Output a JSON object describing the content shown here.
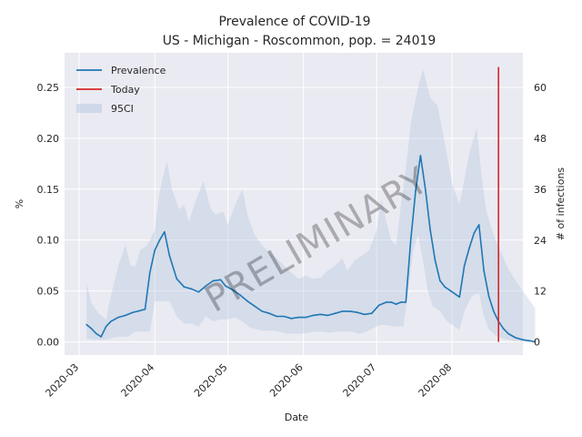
{
  "chart_data": {
    "type": "line",
    "title": "Prevalence of COVID-19",
    "subtitle": "US - Michigan - Roscommon, pop. = 24019",
    "xlabel": "Date",
    "ylabel": "%",
    "y2label": "# of infections",
    "watermark": "PRELIMINARY",
    "xlim": [
      "2020-02-24",
      "2020-08-30"
    ],
    "ylim": [
      -0.013,
      0.284
    ],
    "x_ticks": [
      "2020-03",
      "2020-04",
      "2020-05",
      "2020-06",
      "2020-07",
      "2020-08"
    ],
    "y_ticks": [
      "0.00",
      "0.05",
      "0.10",
      "0.15",
      "0.20",
      "0.25"
    ],
    "y2_ticks": [
      "0",
      "12",
      "24",
      "36",
      "48",
      "60"
    ],
    "grid": true,
    "legend_position": "top-left",
    "series": [
      {
        "name": "Prevalence",
        "color": "#1f77b4",
        "points": [
          [
            "2020-03-04",
            0.017
          ],
          [
            "2020-03-06",
            0.013
          ],
          [
            "2020-03-08",
            0.008
          ],
          [
            "2020-03-10",
            0.005
          ],
          [
            "2020-03-12",
            0.015
          ],
          [
            "2020-03-14",
            0.02
          ],
          [
            "2020-03-17",
            0.024
          ],
          [
            "2020-03-20",
            0.026
          ],
          [
            "2020-03-23",
            0.029
          ],
          [
            "2020-03-25",
            0.03
          ],
          [
            "2020-03-28",
            0.032
          ],
          [
            "2020-03-30",
            0.068
          ],
          [
            "2020-04-01",
            0.09
          ],
          [
            "2020-04-03",
            0.1
          ],
          [
            "2020-04-05",
            0.108
          ],
          [
            "2020-04-07",
            0.085
          ],
          [
            "2020-04-10",
            0.062
          ],
          [
            "2020-04-13",
            0.054
          ],
          [
            "2020-04-16",
            0.052
          ],
          [
            "2020-04-19",
            0.049
          ],
          [
            "2020-04-22",
            0.055
          ],
          [
            "2020-04-25",
            0.06
          ],
          [
            "2020-04-28",
            0.061
          ],
          [
            "2020-04-30",
            0.055
          ],
          [
            "2020-05-03",
            0.051
          ],
          [
            "2020-05-06",
            0.046
          ],
          [
            "2020-05-09",
            0.04
          ],
          [
            "2020-05-12",
            0.035
          ],
          [
            "2020-05-15",
            0.03
          ],
          [
            "2020-05-18",
            0.028
          ],
          [
            "2020-05-21",
            0.025
          ],
          [
            "2020-05-24",
            0.025
          ],
          [
            "2020-05-27",
            0.023
          ],
          [
            "2020-05-30",
            0.024
          ],
          [
            "2020-06-02",
            0.024
          ],
          [
            "2020-06-05",
            0.026
          ],
          [
            "2020-06-08",
            0.027
          ],
          [
            "2020-06-11",
            0.026
          ],
          [
            "2020-06-14",
            0.028
          ],
          [
            "2020-06-17",
            0.03
          ],
          [
            "2020-06-20",
            0.03
          ],
          [
            "2020-06-23",
            0.029
          ],
          [
            "2020-06-26",
            0.027
          ],
          [
            "2020-06-29",
            0.028
          ],
          [
            "2020-07-02",
            0.036
          ],
          [
            "2020-07-05",
            0.039
          ],
          [
            "2020-07-07",
            0.039
          ],
          [
            "2020-07-09",
            0.037
          ],
          [
            "2020-07-11",
            0.039
          ],
          [
            "2020-07-13",
            0.039
          ],
          [
            "2020-07-15",
            0.1
          ],
          [
            "2020-07-17",
            0.148
          ],
          [
            "2020-07-19",
            0.183
          ],
          [
            "2020-07-21",
            0.15
          ],
          [
            "2020-07-23",
            0.11
          ],
          [
            "2020-07-25",
            0.08
          ],
          [
            "2020-07-27",
            0.06
          ],
          [
            "2020-07-29",
            0.054
          ],
          [
            "2020-08-01",
            0.049
          ],
          [
            "2020-08-04",
            0.044
          ],
          [
            "2020-08-06",
            0.075
          ],
          [
            "2020-08-08",
            0.092
          ],
          [
            "2020-08-10",
            0.107
          ],
          [
            "2020-08-12",
            0.115
          ],
          [
            "2020-08-14",
            0.07
          ],
          [
            "2020-08-16",
            0.045
          ],
          [
            "2020-08-18",
            0.03
          ],
          [
            "2020-08-20",
            0.02
          ],
          [
            "2020-08-22",
            0.013
          ],
          [
            "2020-08-24",
            0.008
          ],
          [
            "2020-08-27",
            0.004
          ],
          [
            "2020-08-30",
            0.002
          ],
          [
            "2020-09-02",
            0.001
          ],
          [
            "2020-09-04",
            0.0
          ]
        ]
      },
      {
        "name": "Today",
        "color": "#d62728",
        "x": "2020-08-20",
        "y_range": [
          0.0,
          0.27
        ]
      },
      {
        "name": "95CI",
        "color": "#b0c4de",
        "upper": [
          [
            "2020-03-04",
            0.058
          ],
          [
            "2020-03-06",
            0.038
          ],
          [
            "2020-03-09",
            0.028
          ],
          [
            "2020-03-12",
            0.022
          ],
          [
            "2020-03-14",
            0.045
          ],
          [
            "2020-03-17",
            0.075
          ],
          [
            "2020-03-20",
            0.095
          ],
          [
            "2020-03-22",
            0.075
          ],
          [
            "2020-03-24",
            0.074
          ],
          [
            "2020-03-26",
            0.09
          ],
          [
            "2020-03-29",
            0.095
          ],
          [
            "2020-04-01",
            0.11
          ],
          [
            "2020-04-03",
            0.148
          ],
          [
            "2020-04-06",
            0.178
          ],
          [
            "2020-04-08",
            0.15
          ],
          [
            "2020-04-11",
            0.13
          ],
          [
            "2020-04-13",
            0.135
          ],
          [
            "2020-04-15",
            0.118
          ],
          [
            "2020-04-18",
            0.14
          ],
          [
            "2020-04-21",
            0.158
          ],
          [
            "2020-04-24",
            0.13
          ],
          [
            "2020-04-26",
            0.125
          ],
          [
            "2020-04-29",
            0.128
          ],
          [
            "2020-05-01",
            0.115
          ],
          [
            "2020-05-04",
            0.135
          ],
          [
            "2020-05-07",
            0.15
          ],
          [
            "2020-05-09",
            0.125
          ],
          [
            "2020-05-12",
            0.105
          ],
          [
            "2020-05-15",
            0.095
          ],
          [
            "2020-05-18",
            0.088
          ],
          [
            "2020-05-21",
            0.082
          ],
          [
            "2020-05-24",
            0.075
          ],
          [
            "2020-05-27",
            0.068
          ],
          [
            "2020-05-30",
            0.062
          ],
          [
            "2020-06-02",
            0.065
          ],
          [
            "2020-06-05",
            0.062
          ],
          [
            "2020-06-08",
            0.063
          ],
          [
            "2020-06-11",
            0.07
          ],
          [
            "2020-06-14",
            0.075
          ],
          [
            "2020-06-17",
            0.082
          ],
          [
            "2020-06-19",
            0.07
          ],
          [
            "2020-06-22",
            0.08
          ],
          [
            "2020-06-25",
            0.085
          ],
          [
            "2020-06-28",
            0.09
          ],
          [
            "2020-07-01",
            0.11
          ],
          [
            "2020-07-03",
            0.14
          ],
          [
            "2020-07-05",
            0.118
          ],
          [
            "2020-07-07",
            0.1
          ],
          [
            "2020-07-09",
            0.095
          ],
          [
            "2020-07-11",
            0.135
          ],
          [
            "2020-07-13",
            0.17
          ],
          [
            "2020-07-15",
            0.215
          ],
          [
            "2020-07-18",
            0.25
          ],
          [
            "2020-07-20",
            0.268
          ],
          [
            "2020-07-23",
            0.24
          ],
          [
            "2020-07-26",
            0.232
          ],
          [
            "2020-07-29",
            0.195
          ],
          [
            "2020-08-01",
            0.155
          ],
          [
            "2020-08-04",
            0.135
          ],
          [
            "2020-08-06",
            0.16
          ],
          [
            "2020-08-08",
            0.185
          ],
          [
            "2020-08-11",
            0.21
          ],
          [
            "2020-08-13",
            0.165
          ],
          [
            "2020-08-15",
            0.128
          ],
          [
            "2020-08-18",
            0.105
          ],
          [
            "2020-08-21",
            0.088
          ],
          [
            "2020-08-24",
            0.072
          ],
          [
            "2020-08-27",
            0.06
          ],
          [
            "2020-08-30",
            0.05
          ],
          [
            "2020-09-02",
            0.04
          ],
          [
            "2020-09-04",
            0.033
          ]
        ],
        "lower": [
          [
            "2020-03-04",
            0.003
          ],
          [
            "2020-03-08",
            0.002
          ],
          [
            "2020-03-12",
            0.002
          ],
          [
            "2020-03-15",
            0.004
          ],
          [
            "2020-03-18",
            0.005
          ],
          [
            "2020-03-21",
            0.005
          ],
          [
            "2020-03-24",
            0.01
          ],
          [
            "2020-03-27",
            0.01
          ],
          [
            "2020-03-30",
            0.01
          ],
          [
            "2020-04-01",
            0.04
          ],
          [
            "2020-04-04",
            0.04
          ],
          [
            "2020-04-07",
            0.04
          ],
          [
            "2020-04-10",
            0.025
          ],
          [
            "2020-04-13",
            0.018
          ],
          [
            "2020-04-16",
            0.018
          ],
          [
            "2020-04-19",
            0.015
          ],
          [
            "2020-04-22",
            0.025
          ],
          [
            "2020-04-25",
            0.02
          ],
          [
            "2020-04-28",
            0.022
          ],
          [
            "2020-05-01",
            0.022
          ],
          [
            "2020-05-04",
            0.024
          ],
          [
            "2020-05-07",
            0.02
          ],
          [
            "2020-05-10",
            0.014
          ],
          [
            "2020-05-13",
            0.012
          ],
          [
            "2020-05-16",
            0.011
          ],
          [
            "2020-05-19",
            0.011
          ],
          [
            "2020-05-22",
            0.01
          ],
          [
            "2020-05-25",
            0.008
          ],
          [
            "2020-05-28",
            0.008
          ],
          [
            "2020-05-31",
            0.008
          ],
          [
            "2020-06-03",
            0.009
          ],
          [
            "2020-06-06",
            0.01
          ],
          [
            "2020-06-09",
            0.01
          ],
          [
            "2020-06-12",
            0.009
          ],
          [
            "2020-06-15",
            0.01
          ],
          [
            "2020-06-18",
            0.01
          ],
          [
            "2020-06-21",
            0.01
          ],
          [
            "2020-06-24",
            0.008
          ],
          [
            "2020-06-27",
            0.01
          ],
          [
            "2020-06-30",
            0.014
          ],
          [
            "2020-07-03",
            0.017
          ],
          [
            "2020-07-06",
            0.016
          ],
          [
            "2020-07-09",
            0.015
          ],
          [
            "2020-07-12",
            0.015
          ],
          [
            "2020-07-14",
            0.05
          ],
          [
            "2020-07-16",
            0.09
          ],
          [
            "2020-07-18",
            0.105
          ],
          [
            "2020-07-20",
            0.08
          ],
          [
            "2020-07-22",
            0.05
          ],
          [
            "2020-07-24",
            0.035
          ],
          [
            "2020-07-27",
            0.03
          ],
          [
            "2020-07-30",
            0.02
          ],
          [
            "2020-08-02",
            0.015
          ],
          [
            "2020-08-04",
            0.012
          ],
          [
            "2020-08-06",
            0.03
          ],
          [
            "2020-08-09",
            0.045
          ],
          [
            "2020-08-12",
            0.048
          ],
          [
            "2020-08-14",
            0.025
          ],
          [
            "2020-08-16",
            0.012
          ],
          [
            "2020-08-19",
            0.006
          ],
          [
            "2020-08-22",
            0.003
          ],
          [
            "2020-08-26",
            0.001
          ],
          [
            "2020-08-30",
            0.0
          ],
          [
            "2020-09-04",
            0.0
          ]
        ]
      }
    ]
  }
}
